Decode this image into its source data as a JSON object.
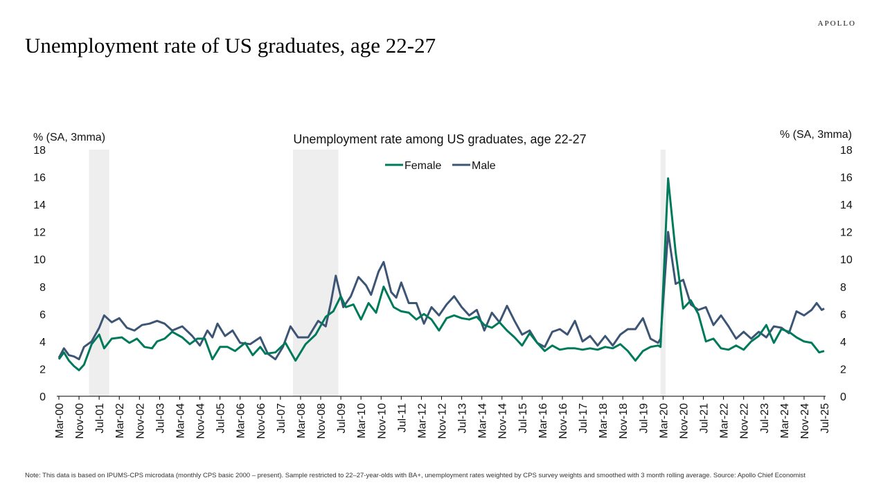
{
  "brand": "APOLLO",
  "page_title": "Unemployment rate of US graduates, age 22-27",
  "footnote": "Note: This data is based on IPUMS-CPS microdata (monthly CPS basic 2000 – present). Sample restricted to 22–27-year-olds with BA+, unemployment rates weighted by CPS survey weights and smoothed with 3 month rolling average. Source: Apollo Chief Economist",
  "colors": {
    "female": "#007a5a",
    "male": "#3d5575",
    "recession": "#eeeeee"
  },
  "chart_data": {
    "type": "line",
    "title": "Unemployment rate among US graduates, age 22-27",
    "ylabel_left": "% (SA, 3mma)",
    "ylabel_right": "% (SA, 3mma)",
    "ylim": [
      0,
      18
    ],
    "yticks": [
      0,
      2,
      4,
      6,
      8,
      10,
      12,
      14,
      16,
      18
    ],
    "xlim": [
      "2000-03",
      "2025-07"
    ],
    "xtick_labels": [
      "Mar-00",
      "Nov-00",
      "Jul-01",
      "Mar-02",
      "Nov-02",
      "Jul-03",
      "Mar-04",
      "Nov-04",
      "Jul-05",
      "Mar-06",
      "Nov-06",
      "Jul-07",
      "Mar-08",
      "Nov-08",
      "Jul-09",
      "Mar-10",
      "Nov-10",
      "Jul-11",
      "Mar-12",
      "Nov-12",
      "Jul-13",
      "Mar-14",
      "Nov-14",
      "Jul-15",
      "Mar-16",
      "Nov-16",
      "Jul-17",
      "Mar-18",
      "Nov-18",
      "Jul-19",
      "Mar-20",
      "Nov-20",
      "Jul-21",
      "Mar-22",
      "Nov-22",
      "Jul-23",
      "Mar-24",
      "Nov-24",
      "Jul-25"
    ],
    "legend_position": "top-center",
    "recession_shading": [
      [
        "2001-03",
        "2001-11"
      ],
      [
        "2007-12",
        "2009-06"
      ],
      [
        "2020-02",
        "2020-04"
      ]
    ],
    "series": [
      {
        "name": "Female",
        "points": [
          [
            "2000-03",
            2.7
          ],
          [
            "2000-05",
            3.2
          ],
          [
            "2000-07",
            2.6
          ],
          [
            "2000-09",
            2.2
          ],
          [
            "2000-11",
            1.9
          ],
          [
            "2001-01",
            2.3
          ],
          [
            "2001-04",
            3.8
          ],
          [
            "2001-07",
            4.5
          ],
          [
            "2001-09",
            3.5
          ],
          [
            "2001-12",
            4.2
          ],
          [
            "2002-04",
            4.3
          ],
          [
            "2002-07",
            3.9
          ],
          [
            "2002-10",
            4.2
          ],
          [
            "2003-01",
            3.6
          ],
          [
            "2003-04",
            3.5
          ],
          [
            "2003-06",
            4.0
          ],
          [
            "2003-09",
            4.2
          ],
          [
            "2003-12",
            4.7
          ],
          [
            "2004-04",
            4.3
          ],
          [
            "2004-07",
            3.8
          ],
          [
            "2004-10",
            4.2
          ],
          [
            "2005-01",
            4.2
          ],
          [
            "2005-04",
            2.7
          ],
          [
            "2005-07",
            3.6
          ],
          [
            "2005-10",
            3.6
          ],
          [
            "2006-01",
            3.3
          ],
          [
            "2006-05",
            3.9
          ],
          [
            "2006-08",
            3.0
          ],
          [
            "2006-11",
            3.6
          ],
          [
            "2007-01",
            3.1
          ],
          [
            "2007-05",
            3.2
          ],
          [
            "2007-09",
            3.9
          ],
          [
            "2008-01",
            2.6
          ],
          [
            "2008-05",
            3.8
          ],
          [
            "2008-09",
            4.5
          ],
          [
            "2009-01",
            5.8
          ],
          [
            "2009-04",
            6.2
          ],
          [
            "2009-07",
            7.3
          ],
          [
            "2009-09",
            6.5
          ],
          [
            "2009-12",
            6.7
          ],
          [
            "2010-03",
            5.6
          ],
          [
            "2010-06",
            6.8
          ],
          [
            "2010-09",
            6.1
          ],
          [
            "2010-12",
            8.0
          ],
          [
            "2011-04",
            6.5
          ],
          [
            "2011-07",
            6.2
          ],
          [
            "2011-10",
            6.1
          ],
          [
            "2012-01",
            5.6
          ],
          [
            "2012-04",
            6.0
          ],
          [
            "2012-07",
            5.6
          ],
          [
            "2012-10",
            4.8
          ],
          [
            "2013-01",
            5.7
          ],
          [
            "2013-04",
            5.9
          ],
          [
            "2013-07",
            5.7
          ],
          [
            "2013-10",
            5.6
          ],
          [
            "2014-01",
            5.8
          ],
          [
            "2014-04",
            5.2
          ],
          [
            "2014-07",
            5.0
          ],
          [
            "2014-10",
            5.4
          ],
          [
            "2015-01",
            4.8
          ],
          [
            "2015-04",
            4.3
          ],
          [
            "2015-07",
            3.7
          ],
          [
            "2015-10",
            4.6
          ],
          [
            "2016-01",
            3.9
          ],
          [
            "2016-04",
            3.3
          ],
          [
            "2016-07",
            3.7
          ],
          [
            "2016-10",
            3.4
          ],
          [
            "2017-01",
            3.5
          ],
          [
            "2017-04",
            3.5
          ],
          [
            "2017-07",
            3.4
          ],
          [
            "2017-10",
            3.5
          ],
          [
            "2018-01",
            3.4
          ],
          [
            "2018-04",
            3.6
          ],
          [
            "2018-07",
            3.5
          ],
          [
            "2018-10",
            3.8
          ],
          [
            "2019-01",
            3.3
          ],
          [
            "2019-04",
            2.6
          ],
          [
            "2019-07",
            3.3
          ],
          [
            "2019-10",
            3.6
          ],
          [
            "2020-01",
            3.7
          ],
          [
            "2020-02",
            3.6
          ],
          [
            "2020-05",
            15.9
          ],
          [
            "2020-08",
            10.5
          ],
          [
            "2020-11",
            6.4
          ],
          [
            "2021-02",
            7.0
          ],
          [
            "2021-05",
            6.0
          ],
          [
            "2021-08",
            4.0
          ],
          [
            "2021-11",
            4.2
          ],
          [
            "2022-02",
            3.5
          ],
          [
            "2022-05",
            3.4
          ],
          [
            "2022-08",
            3.7
          ],
          [
            "2022-11",
            3.4
          ],
          [
            "2023-02",
            4.0
          ],
          [
            "2023-05",
            4.4
          ],
          [
            "2023-08",
            5.2
          ],
          [
            "2023-11",
            3.9
          ],
          [
            "2024-02",
            4.9
          ],
          [
            "2024-05",
            4.7
          ],
          [
            "2024-08",
            4.3
          ],
          [
            "2024-11",
            4.0
          ],
          [
            "2025-02",
            3.9
          ],
          [
            "2025-05",
            3.2
          ],
          [
            "2025-07",
            3.3
          ]
        ]
      },
      {
        "name": "Male",
        "points": [
          [
            "2000-03",
            2.8
          ],
          [
            "2000-05",
            3.5
          ],
          [
            "2000-07",
            3.0
          ],
          [
            "2000-09",
            2.9
          ],
          [
            "2000-11",
            2.7
          ],
          [
            "2001-01",
            3.6
          ],
          [
            "2001-04",
            4.0
          ],
          [
            "2001-07",
            5.0
          ],
          [
            "2001-09",
            5.9
          ],
          [
            "2001-12",
            5.4
          ],
          [
            "2002-03",
            5.7
          ],
          [
            "2002-06",
            5.0
          ],
          [
            "2002-09",
            4.8
          ],
          [
            "2002-12",
            5.2
          ],
          [
            "2003-03",
            5.3
          ],
          [
            "2003-06",
            5.5
          ],
          [
            "2003-09",
            5.3
          ],
          [
            "2003-12",
            4.8
          ],
          [
            "2004-04",
            5.1
          ],
          [
            "2004-08",
            4.4
          ],
          [
            "2004-11",
            3.7
          ],
          [
            "2005-02",
            4.8
          ],
          [
            "2005-04",
            4.3
          ],
          [
            "2005-06",
            5.3
          ],
          [
            "2005-09",
            4.4
          ],
          [
            "2005-12",
            4.8
          ],
          [
            "2006-03",
            3.9
          ],
          [
            "2006-07",
            3.8
          ],
          [
            "2006-11",
            4.3
          ],
          [
            "2007-02",
            3.1
          ],
          [
            "2007-05",
            2.7
          ],
          [
            "2007-08",
            3.6
          ],
          [
            "2007-11",
            5.1
          ],
          [
            "2008-02",
            4.3
          ],
          [
            "2008-06",
            4.3
          ],
          [
            "2008-10",
            5.5
          ],
          [
            "2009-01",
            5.1
          ],
          [
            "2009-03",
            6.8
          ],
          [
            "2009-05",
            8.8
          ],
          [
            "2009-08",
            6.5
          ],
          [
            "2009-11",
            7.3
          ],
          [
            "2010-02",
            8.7
          ],
          [
            "2010-05",
            8.1
          ],
          [
            "2010-07",
            7.4
          ],
          [
            "2010-10",
            9.1
          ],
          [
            "2010-12",
            9.8
          ],
          [
            "2011-03",
            7.6
          ],
          [
            "2011-05",
            7.2
          ],
          [
            "2011-07",
            8.3
          ],
          [
            "2011-10",
            6.8
          ],
          [
            "2012-01",
            6.8
          ],
          [
            "2012-04",
            5.3
          ],
          [
            "2012-07",
            6.5
          ],
          [
            "2012-10",
            5.9
          ],
          [
            "2013-01",
            6.7
          ],
          [
            "2013-04",
            7.3
          ],
          [
            "2013-07",
            6.5
          ],
          [
            "2013-10",
            5.9
          ],
          [
            "2014-01",
            6.3
          ],
          [
            "2014-04",
            4.8
          ],
          [
            "2014-07",
            6.1
          ],
          [
            "2014-10",
            5.4
          ],
          [
            "2015-01",
            6.6
          ],
          [
            "2015-04",
            5.5
          ],
          [
            "2015-07",
            4.5
          ],
          [
            "2015-10",
            4.8
          ],
          [
            "2016-01",
            3.9
          ],
          [
            "2016-04",
            3.6
          ],
          [
            "2016-07",
            4.7
          ],
          [
            "2016-10",
            4.9
          ],
          [
            "2017-01",
            4.5
          ],
          [
            "2017-04",
            5.5
          ],
          [
            "2017-07",
            4.0
          ],
          [
            "2017-10",
            4.4
          ],
          [
            "2018-01",
            3.7
          ],
          [
            "2018-04",
            4.4
          ],
          [
            "2018-07",
            3.7
          ],
          [
            "2018-10",
            4.5
          ],
          [
            "2019-01",
            4.9
          ],
          [
            "2019-04",
            4.9
          ],
          [
            "2019-07",
            5.7
          ],
          [
            "2019-10",
            4.2
          ],
          [
            "2020-01",
            3.9
          ],
          [
            "2020-02",
            4.2
          ],
          [
            "2020-05",
            12.0
          ],
          [
            "2020-08",
            8.2
          ],
          [
            "2020-11",
            8.5
          ],
          [
            "2021-02",
            6.7
          ],
          [
            "2021-05",
            6.3
          ],
          [
            "2021-08",
            6.5
          ],
          [
            "2021-11",
            5.2
          ],
          [
            "2022-02",
            5.9
          ],
          [
            "2022-05",
            5.1
          ],
          [
            "2022-08",
            4.2
          ],
          [
            "2022-11",
            4.7
          ],
          [
            "2023-02",
            4.2
          ],
          [
            "2023-05",
            4.7
          ],
          [
            "2023-08",
            4.3
          ],
          [
            "2023-11",
            5.1
          ],
          [
            "2024-02",
            5.0
          ],
          [
            "2024-05",
            4.6
          ],
          [
            "2024-08",
            6.2
          ],
          [
            "2024-11",
            5.9
          ],
          [
            "2025-02",
            6.3
          ],
          [
            "2025-04",
            6.8
          ],
          [
            "2025-06",
            6.3
          ],
          [
            "2025-07",
            6.4
          ]
        ]
      }
    ]
  }
}
